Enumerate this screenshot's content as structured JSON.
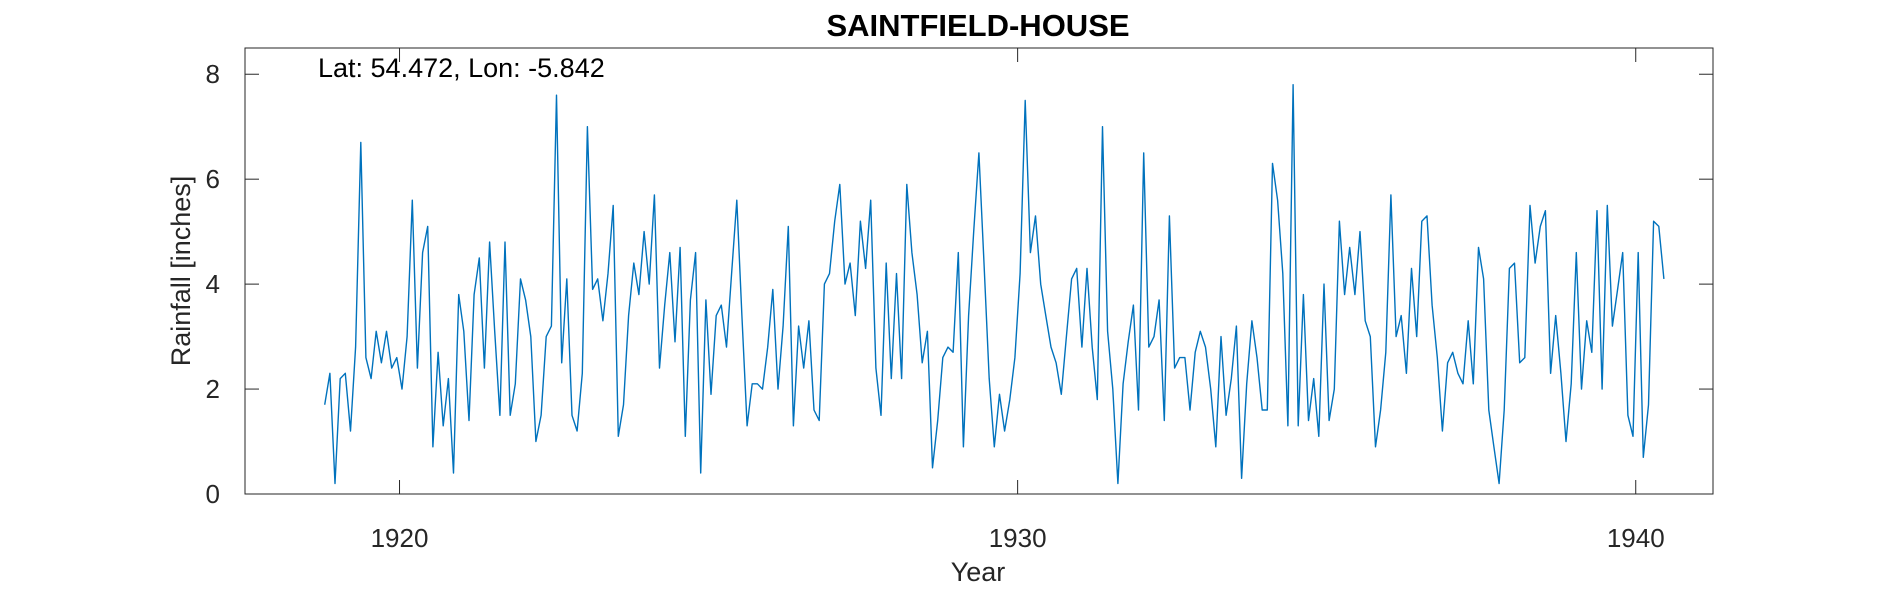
{
  "chart_data": {
    "type": "line",
    "title": "SAINTFIELD-HOUSE",
    "annotation": "Lat: 54.472, Lon: -5.842",
    "xlabel": "Year",
    "ylabel": "Rainfall [inches]",
    "xlim": [
      1917.5,
      1941.25
    ],
    "ylim": [
      0,
      8.5
    ],
    "xticks": [
      1920,
      1930,
      1940
    ],
    "yticks": [
      0,
      2,
      4,
      6,
      8
    ],
    "xtick_labels": [
      "1920",
      "1930",
      "1940"
    ],
    "ytick_labels": [
      "0",
      "2",
      "4",
      "6",
      "8"
    ],
    "grid": false,
    "series_color": "#0072BD",
    "series": [
      {
        "x_start": 1918.79,
        "x_step": 0.08333,
        "values": [
          1.7,
          2.3,
          0.2,
          2.2,
          2.3,
          1.2,
          2.8,
          6.7,
          2.6,
          2.2,
          3.1,
          2.5,
          3.1,
          2.4,
          2.6,
          2.0,
          3.0,
          5.6,
          2.4,
          4.6,
          5.1,
          0.9,
          2.7,
          1.3,
          2.2,
          0.4,
          3.8,
          3.1,
          1.4,
          3.8,
          4.5,
          2.4,
          4.8,
          3.1,
          1.5,
          4.8,
          1.5,
          2.1,
          4.1,
          3.7,
          3.0,
          1.0,
          1.5,
          3.0,
          3.2,
          7.6,
          2.5,
          4.1,
          1.5,
          1.2,
          2.3,
          7.0,
          3.9,
          4.1,
          3.3,
          4.2,
          5.5,
          1.1,
          1.7,
          3.4,
          4.4,
          3.8,
          5.0,
          4.0,
          5.7,
          2.4,
          3.6,
          4.6,
          2.9,
          4.7,
          1.1,
          3.7,
          4.6,
          0.4,
          3.7,
          1.9,
          3.4,
          3.6,
          2.8,
          4.2,
          5.6,
          3.4,
          1.3,
          2.1,
          2.1,
          2.0,
          2.8,
          3.9,
          2.0,
          3.2,
          5.1,
          1.3,
          3.2,
          2.4,
          3.3,
          1.6,
          1.4,
          4.0,
          4.2,
          5.2,
          5.9,
          4.0,
          4.4,
          3.4,
          5.2,
          4.3,
          5.6,
          2.4,
          1.5,
          4.4,
          2.2,
          4.2,
          2.2,
          5.9,
          4.6,
          3.8,
          2.5,
          3.1,
          0.5,
          1.4,
          2.6,
          2.8,
          2.7,
          4.6,
          0.9,
          3.4,
          5.0,
          6.5,
          4.4,
          2.2,
          0.9,
          1.9,
          1.2,
          1.8,
          2.6,
          4.2,
          7.5,
          4.6,
          5.3,
          4.0,
          3.4,
          2.8,
          2.5,
          1.9,
          3.0,
          4.1,
          4.3,
          2.8,
          4.3,
          2.8,
          1.8,
          7.0,
          3.1,
          2.0,
          0.2,
          2.1,
          2.9,
          3.6,
          1.6,
          6.5,
          2.8,
          3.0,
          3.7,
          1.4,
          5.3,
          2.4,
          2.6,
          2.6,
          1.6,
          2.7,
          3.1,
          2.8,
          2.0,
          0.9,
          3.0,
          1.5,
          2.2,
          3.2,
          0.3,
          2.1,
          3.3,
          2.6,
          1.6,
          1.6,
          6.3,
          5.6,
          4.2,
          1.3,
          7.8,
          1.3,
          3.8,
          1.4,
          2.2,
          1.1,
          4.0,
          1.4,
          2.0,
          5.2,
          3.8,
          4.7,
          3.8,
          5.0,
          3.3,
          3.0,
          0.9,
          1.6,
          2.7,
          5.7,
          3.0,
          3.4,
          2.3,
          4.3,
          3.0,
          5.2,
          5.3,
          3.6,
          2.6,
          1.2,
          2.5,
          2.7,
          2.3,
          2.1,
          3.3,
          2.1,
          4.7,
          4.1,
          1.6,
          0.9,
          0.2,
          1.6,
          4.3,
          4.4,
          2.5,
          2.6,
          5.5,
          4.4,
          5.1,
          5.4,
          2.3,
          3.4,
          2.3,
          1.0,
          2.1,
          4.6,
          2.0,
          3.3,
          2.7,
          5.4,
          2.0,
          5.5,
          3.2,
          3.9,
          4.6,
          1.5,
          1.1,
          4.6,
          0.7,
          1.7,
          5.2,
          5.1,
          4.1
        ]
      }
    ]
  }
}
